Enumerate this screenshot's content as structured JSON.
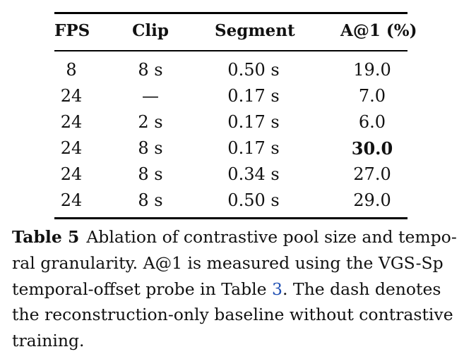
{
  "table": {
    "headers": [
      "FPS",
      "Clip",
      "Segment",
      "A@1 (%)"
    ],
    "rows": [
      {
        "fps": "8",
        "clip": "8 s",
        "segment": "0.50 s",
        "acc": "19.0"
      },
      {
        "fps": "24",
        "clip": "—",
        "segment": "0.17 s",
        "acc": "7.0"
      },
      {
        "fps": "24",
        "clip": "2 s",
        "segment": "0.17 s",
        "acc": "6.0"
      },
      {
        "fps": "24",
        "clip": "8 s",
        "segment": "0.17 s",
        "acc": "30.0"
      },
      {
        "fps": "24",
        "clip": "8 s",
        "segment": "0.34 s",
        "acc": "27.0"
      },
      {
        "fps": "24",
        "clip": "8 s",
        "segment": "0.50 s",
        "acc": "29.0"
      }
    ]
  },
  "caption": {
    "label": "Table 5",
    "line1": "Ablation of contrastive pool size and tempo-",
    "line2": "ral granularity.  A@1 is measured using the VGS-Sp",
    "line3_before": "temporal-offset probe in Table ",
    "line3_ref": "3",
    "line3_after": ".  The dash denotes",
    "line4": "the reconstruction-only baseline without contrastive",
    "line5": "training."
  },
  "colors": {
    "reference_link": "#1f4fb3"
  }
}
